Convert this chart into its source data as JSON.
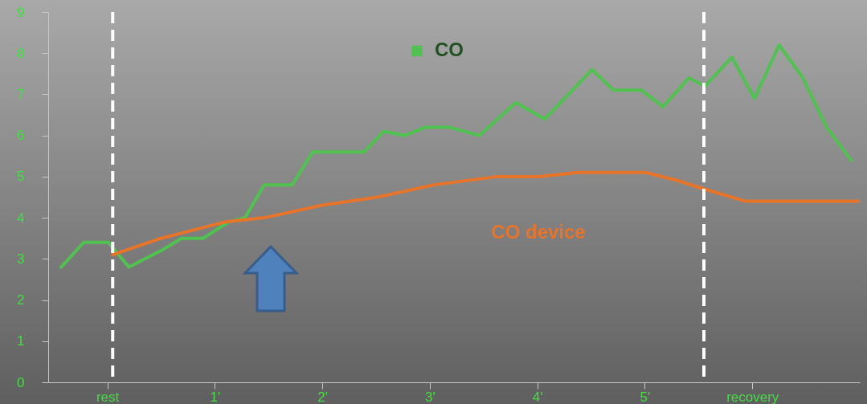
{
  "chart_data": {
    "type": "line",
    "xlim": [
      -0.55,
      7
    ],
    "xticks": [
      {
        "value": 0,
        "label": "rest"
      },
      {
        "value": 1,
        "label": "1'"
      },
      {
        "value": 2,
        "label": "2'"
      },
      {
        "value": 3,
        "label": "3'"
      },
      {
        "value": 4,
        "label": "4'"
      },
      {
        "value": 5,
        "label": "5'"
      },
      {
        "value": 6,
        "label": "recovery"
      }
    ],
    "ylim": [
      0,
      9
    ],
    "yticks": [
      0,
      1,
      2,
      3,
      4,
      5,
      6,
      7,
      8,
      9
    ],
    "series": [
      {
        "name": "CO",
        "color": "#4fc24f",
        "x": [
          -0.43,
          -0.22,
          0.01,
          0.2,
          0.5,
          0.69,
          0.89,
          1.13,
          1.28,
          1.46,
          1.72,
          1.91,
          2.39,
          2.57,
          2.77,
          2.96,
          3.18,
          3.46,
          3.8,
          4.07,
          4.51,
          4.71,
          4.97,
          5.17,
          5.41,
          5.56,
          5.81,
          6.02,
          6.25,
          6.47,
          6.69,
          6.92
        ],
        "values": [
          2.8,
          3.4,
          3.4,
          2.8,
          3.2,
          3.5,
          3.5,
          3.9,
          4.0,
          4.8,
          4.8,
          5.6,
          5.6,
          6.1,
          6.0,
          6.2,
          6.2,
          6.0,
          6.8,
          6.4,
          7.6,
          7.1,
          7.1,
          6.7,
          7.4,
          7.2,
          7.9,
          6.9,
          8.2,
          7.4,
          6.2,
          5.4
        ]
      },
      {
        "name": "CO device",
        "color": "#e8742a",
        "x": [
          0.05,
          0.5,
          1.1,
          1.46,
          1.99,
          2.51,
          3.04,
          3.63,
          4.01,
          4.38,
          5.01,
          5.31,
          5.55,
          5.94,
          6.47,
          6.99
        ],
        "values": [
          3.1,
          3.5,
          3.9,
          4.0,
          4.3,
          4.5,
          4.8,
          5.0,
          5.0,
          5.1,
          5.1,
          4.9,
          4.7,
          4.4,
          4.4,
          4.4
        ]
      }
    ],
    "ref_lines": [
      {
        "axis": "x",
        "value": 0.05,
        "color": "#ffffff",
        "line_style": "dashed"
      },
      {
        "axis": "x",
        "value": 5.55,
        "color": "#ffffff",
        "line_style": "dashed"
      }
    ]
  }
}
